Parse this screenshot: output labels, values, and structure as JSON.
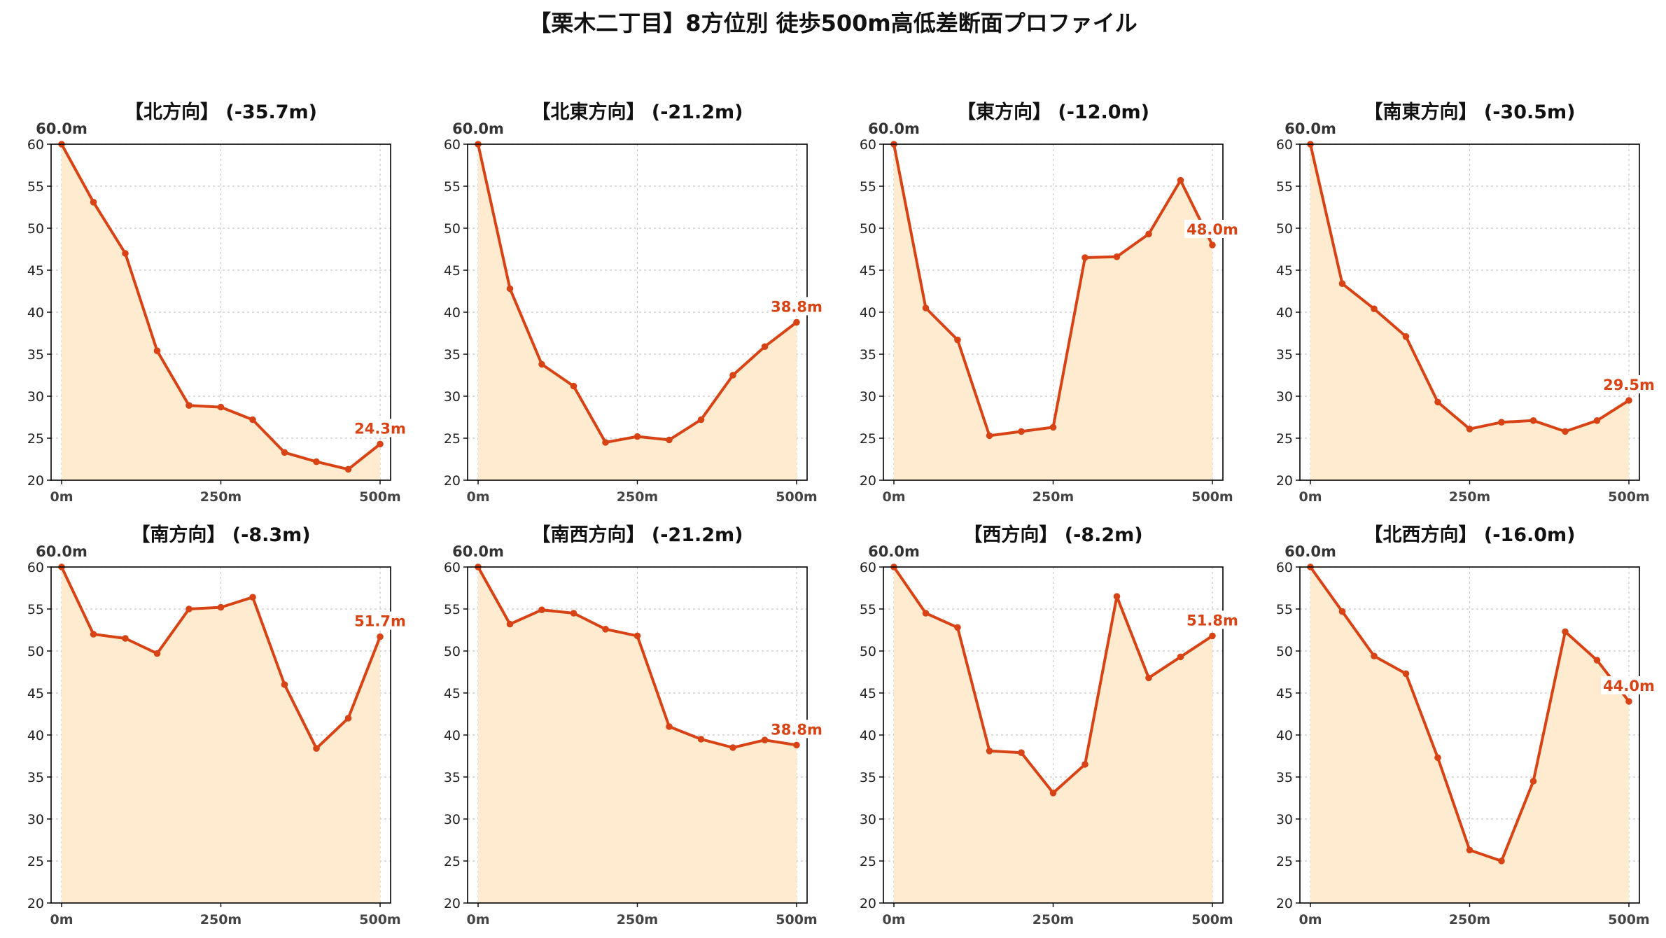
{
  "title": "【栗木二丁目】8方位別 徒歩500m高低差断面プロファイル",
  "colors": {
    "line": "#d84315",
    "fill": "#ffecd0",
    "start_label": "#333333",
    "end_label": "#d84315"
  },
  "chart_data": [
    {
      "type": "area",
      "title": "【北方向】 (-35.7m)",
      "x": [
        0,
        50,
        100,
        150,
        200,
        250,
        300,
        350,
        400,
        450,
        500
      ],
      "values": [
        60.0,
        53.1,
        47.0,
        35.4,
        28.9,
        28.7,
        27.2,
        23.3,
        22.2,
        21.3,
        24.3
      ],
      "start_label": "60.0m",
      "end_label": "24.3m",
      "xticks": [
        "0m",
        "250m",
        "500m"
      ],
      "ylim": [
        20,
        60
      ],
      "yticks": [
        20,
        25,
        30,
        35,
        40,
        45,
        50,
        55,
        60
      ],
      "grid": true
    },
    {
      "type": "area",
      "title": "【北東方向】 (-21.2m)",
      "x": [
        0,
        50,
        100,
        150,
        200,
        250,
        300,
        350,
        400,
        450,
        500
      ],
      "values": [
        60.0,
        42.8,
        33.8,
        31.2,
        24.5,
        25.2,
        24.8,
        27.2,
        32.5,
        35.9,
        38.8
      ],
      "start_label": "60.0m",
      "end_label": "38.8m",
      "xticks": [
        "0m",
        "250m",
        "500m"
      ],
      "ylim": [
        20,
        60
      ],
      "yticks": [
        20,
        25,
        30,
        35,
        40,
        45,
        50,
        55,
        60
      ],
      "grid": true
    },
    {
      "type": "area",
      "title": "【東方向】 (-12.0m)",
      "x": [
        0,
        50,
        100,
        150,
        200,
        250,
        300,
        350,
        400,
        450,
        500
      ],
      "values": [
        60.0,
        40.5,
        36.7,
        25.3,
        25.8,
        26.3,
        46.5,
        46.6,
        49.3,
        55.7,
        48.0
      ],
      "start_label": "60.0m",
      "end_label": "48.0m",
      "xticks": [
        "0m",
        "250m",
        "500m"
      ],
      "ylim": [
        20,
        60
      ],
      "yticks": [
        20,
        25,
        30,
        35,
        40,
        45,
        50,
        55,
        60
      ],
      "grid": true
    },
    {
      "type": "area",
      "title": "【南東方向】 (-30.5m)",
      "x": [
        0,
        50,
        100,
        150,
        200,
        250,
        300,
        350,
        400,
        450,
        500
      ],
      "values": [
        60.0,
        43.4,
        40.4,
        37.1,
        29.3,
        26.1,
        26.9,
        27.1,
        25.8,
        27.1,
        29.5
      ],
      "start_label": "60.0m",
      "end_label": "29.5m",
      "xticks": [
        "0m",
        "250m",
        "500m"
      ],
      "ylim": [
        20,
        60
      ],
      "yticks": [
        20,
        25,
        30,
        35,
        40,
        45,
        50,
        55,
        60
      ],
      "grid": true
    },
    {
      "type": "area",
      "title": "【南方向】 (-8.3m)",
      "x": [
        0,
        50,
        100,
        150,
        200,
        250,
        300,
        350,
        400,
        450,
        500
      ],
      "values": [
        60.0,
        52.0,
        51.5,
        49.7,
        55.0,
        55.2,
        56.4,
        46.0,
        38.4,
        42.0,
        51.7
      ],
      "start_label": "60.0m",
      "end_label": "51.7m",
      "xticks": [
        "0m",
        "250m",
        "500m"
      ],
      "ylim": [
        20,
        60
      ],
      "yticks": [
        20,
        25,
        30,
        35,
        40,
        45,
        50,
        55,
        60
      ],
      "grid": true
    },
    {
      "type": "area",
      "title": "【南西方向】 (-21.2m)",
      "x": [
        0,
        50,
        100,
        150,
        200,
        250,
        300,
        350,
        400,
        450,
        500
      ],
      "values": [
        60.0,
        53.2,
        54.9,
        54.5,
        52.6,
        51.8,
        41.0,
        39.5,
        38.5,
        39.4,
        38.8
      ],
      "start_label": "60.0m",
      "end_label": "38.8m",
      "xticks": [
        "0m",
        "250m",
        "500m"
      ],
      "ylim": [
        20,
        60
      ],
      "yticks": [
        20,
        25,
        30,
        35,
        40,
        45,
        50,
        55,
        60
      ],
      "grid": true
    },
    {
      "type": "area",
      "title": "【西方向】 (-8.2m)",
      "x": [
        0,
        50,
        100,
        150,
        200,
        250,
        300,
        350,
        400,
        450,
        500
      ],
      "values": [
        60.0,
        54.5,
        52.8,
        38.1,
        37.9,
        33.1,
        36.5,
        56.5,
        46.8,
        49.3,
        51.8
      ],
      "start_label": "60.0m",
      "end_label": "51.8m",
      "xticks": [
        "0m",
        "250m",
        "500m"
      ],
      "ylim": [
        20,
        60
      ],
      "yticks": [
        20,
        25,
        30,
        35,
        40,
        45,
        50,
        55,
        60
      ],
      "grid": true
    },
    {
      "type": "area",
      "title": "【北西方向】 (-16.0m)",
      "x": [
        0,
        50,
        100,
        150,
        200,
        250,
        300,
        350,
        400,
        450,
        500
      ],
      "values": [
        60.0,
        54.7,
        49.4,
        47.3,
        37.3,
        26.3,
        25.0,
        34.5,
        52.3,
        48.9,
        44.0
      ],
      "start_label": "60.0m",
      "end_label": "44.0m",
      "xticks": [
        "0m",
        "250m",
        "500m"
      ],
      "ylim": [
        20,
        60
      ],
      "yticks": [
        20,
        25,
        30,
        35,
        40,
        45,
        50,
        55,
        60
      ],
      "grid": true
    }
  ]
}
